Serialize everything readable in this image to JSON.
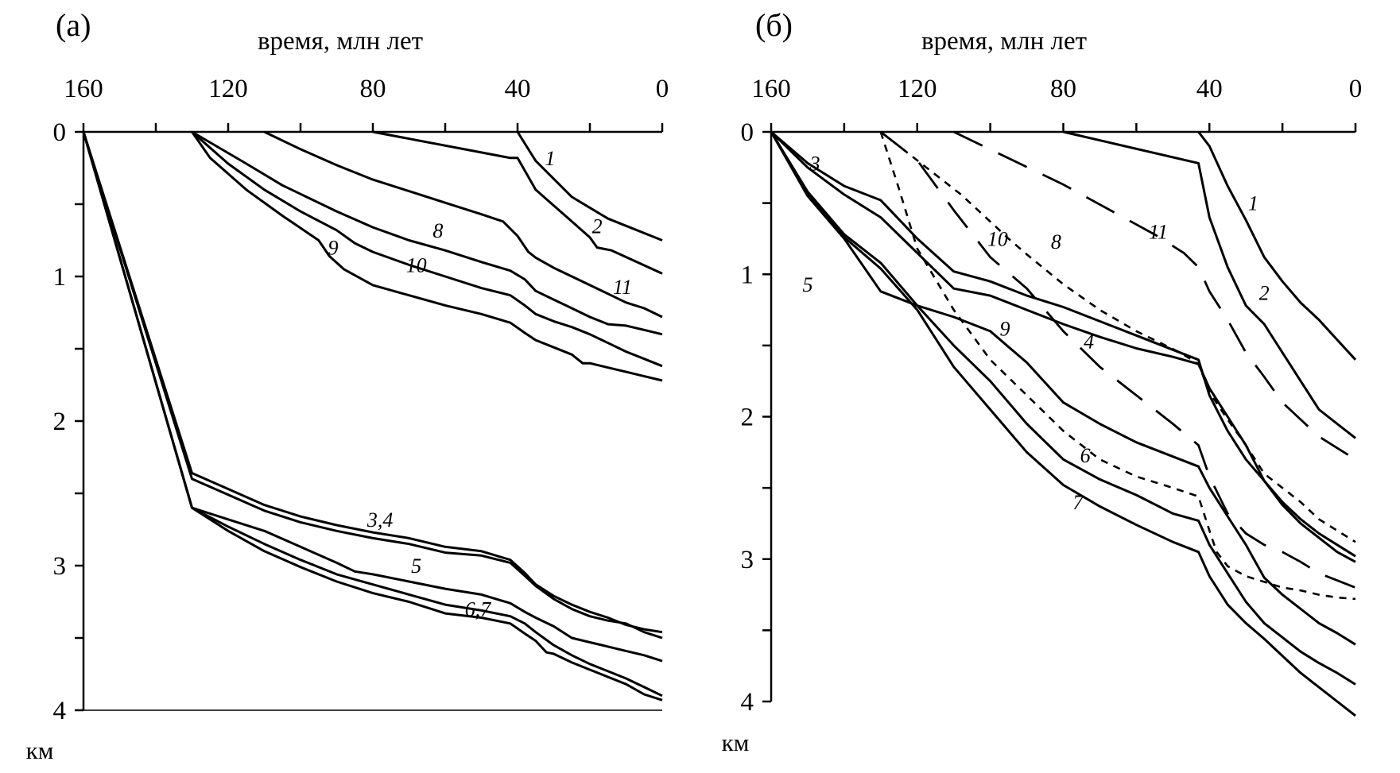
{
  "chart_data": [
    {
      "type": "line",
      "panel_label": "(а)",
      "xlabel": "время, млн лет",
      "ylabel": "км",
      "x_axis_position": "top",
      "x_reversed": true,
      "y_reversed": true,
      "xlim": [
        160,
        0
      ],
      "ylim": [
        0,
        4
      ],
      "x_tick_labels": [
        160,
        120,
        80,
        40,
        0
      ],
      "x_minor_ticks": [
        140,
        100,
        60,
        20
      ],
      "y_tick_labels": [
        0,
        1,
        2,
        3,
        4
      ],
      "y_minor_ticks": [
        0.5,
        1.5,
        2.5,
        3.5
      ],
      "grid": false,
      "series": [
        {
          "label": "1",
          "style": "solid",
          "label_at": [
            31,
            0.23
          ],
          "x": [
            40,
            35,
            25,
            15,
            0
          ],
          "y": [
            0,
            0.2,
            0.45,
            0.6,
            0.75
          ]
        },
        {
          "label": "2",
          "style": "solid",
          "label_at": [
            18,
            0.7
          ],
          "x": [
            80,
            42,
            40,
            35,
            25,
            20,
            18,
            14,
            0
          ],
          "y": [
            0,
            0.18,
            0.18,
            0.4,
            0.62,
            0.73,
            0.8,
            0.82,
            0.98
          ]
        },
        {
          "label": "",
          "style": "solid",
          "x": [
            110,
            100,
            90,
            80,
            70,
            60,
            50,
            44,
            40,
            37,
            35,
            30,
            25,
            20,
            15,
            10,
            5,
            0
          ],
          "y": [
            0,
            0.12,
            0.23,
            0.33,
            0.41,
            0.49,
            0.57,
            0.62,
            0.72,
            0.83,
            0.87,
            0.94,
            1.0,
            1.06,
            1.12,
            1.18,
            1.22,
            1.28
          ]
        },
        {
          "label": "8",
          "style": "solid",
          "label_at": [
            62,
            0.73
          ],
          "x": [
            130,
            115,
            105,
            90,
            80,
            70,
            60,
            50,
            42,
            38,
            35,
            30,
            25,
            20,
            15,
            10,
            5,
            0
          ],
          "y": [
            0,
            0.22,
            0.37,
            0.55,
            0.66,
            0.75,
            0.82,
            0.9,
            0.96,
            1.02,
            1.1,
            1.16,
            1.22,
            1.28,
            1.33,
            1.34,
            1.37,
            1.4
          ]
        },
        {
          "label": "11",
          "style": "solid",
          "label_at": [
            11,
            1.12
          ],
          "x": [
            130,
            120,
            110,
            100,
            90,
            85,
            80,
            70,
            60,
            50,
            42,
            38,
            35,
            30,
            25,
            20,
            15,
            10,
            5,
            0
          ],
          "y": [
            0,
            0.22,
            0.4,
            0.55,
            0.68,
            0.77,
            0.83,
            0.92,
            1.0,
            1.08,
            1.13,
            1.2,
            1.26,
            1.31,
            1.35,
            1.4,
            1.46,
            1.52,
            1.57,
            1.62
          ]
        },
        {
          "label": "9",
          "style": "solid",
          "label_at": [
            91,
            0.85
          ],
          "x": [
            130,
            125,
            115,
            105,
            95,
            92,
            88,
            80,
            70,
            60,
            50,
            42,
            38,
            35,
            30,
            25,
            22,
            20,
            15,
            10,
            5,
            0
          ],
          "y": [
            0,
            0.18,
            0.4,
            0.58,
            0.75,
            0.86,
            0.95,
            1.06,
            1.13,
            1.2,
            1.26,
            1.32,
            1.39,
            1.44,
            1.49,
            1.54,
            1.6,
            1.6,
            1.63,
            1.66,
            1.69,
            1.72
          ]
        },
        {
          "label": "10",
          "style": "solid",
          "label_at": [
            68,
            0.97
          ],
          "x": [],
          "y": []
        },
        {
          "label": "",
          "style": "solid",
          "x": [
            160,
            130,
            120,
            110,
            100,
            90,
            80,
            70,
            60,
            50,
            42,
            38,
            35,
            30,
            25,
            20,
            15,
            10,
            5,
            0
          ],
          "y": [
            0,
            2.36,
            2.47,
            2.58,
            2.66,
            2.72,
            2.77,
            2.81,
            2.87,
            2.9,
            2.96,
            3.05,
            3.13,
            3.21,
            3.27,
            3.32,
            3.36,
            3.41,
            3.44,
            3.46
          ]
        },
        {
          "label": "3,4",
          "style": "solid",
          "label_at": [
            78,
            2.73
          ],
          "x": [
            160,
            130,
            120,
            110,
            100,
            90,
            80,
            70,
            60,
            50,
            42,
            38,
            35,
            30,
            25,
            20,
            15,
            10,
            5,
            0
          ],
          "y": [
            0,
            2.4,
            2.51,
            2.62,
            2.7,
            2.76,
            2.81,
            2.85,
            2.91,
            2.93,
            2.98,
            3.07,
            3.14,
            3.23,
            3.3,
            3.35,
            3.38,
            3.4,
            3.46,
            3.5
          ]
        },
        {
          "label": "5",
          "style": "solid",
          "label_at": [
            68,
            3.05
          ],
          "x": [
            160,
            130,
            120,
            110,
            100,
            90,
            85,
            80,
            70,
            60,
            50,
            42,
            38,
            35,
            30,
            25,
            20,
            15,
            10,
            5,
            0
          ],
          "y": [
            0,
            2.6,
            2.68,
            2.76,
            2.87,
            2.98,
            3.04,
            3.06,
            3.11,
            3.16,
            3.2,
            3.26,
            3.32,
            3.36,
            3.42,
            3.5,
            3.53,
            3.56,
            3.59,
            3.62,
            3.66
          ]
        },
        {
          "label": "",
          "style": "solid",
          "x": [
            160,
            130,
            120,
            110,
            100,
            90,
            80,
            70,
            60,
            50,
            42,
            38,
            35,
            30,
            25,
            20,
            15,
            10,
            5,
            0
          ],
          "y": [
            0,
            2.6,
            2.73,
            2.85,
            2.96,
            3.06,
            3.13,
            3.2,
            3.27,
            3.31,
            3.35,
            3.4,
            3.46,
            3.55,
            3.62,
            3.68,
            3.73,
            3.78,
            3.84,
            3.9
          ]
        },
        {
          "label": "6,7",
          "style": "solid",
          "label_at": [
            51,
            3.35
          ],
          "x": [
            160,
            130,
            120,
            110,
            100,
            90,
            80,
            70,
            60,
            50,
            42,
            38,
            35,
            32,
            30,
            25,
            20,
            15,
            10,
            5,
            0
          ],
          "y": [
            0,
            2.6,
            2.76,
            2.9,
            3.01,
            3.11,
            3.19,
            3.25,
            3.33,
            3.36,
            3.4,
            3.47,
            3.52,
            3.6,
            3.61,
            3.67,
            3.72,
            3.77,
            3.82,
            3.89,
            3.93
          ]
        }
      ]
    },
    {
      "type": "line",
      "panel_label": "(б)",
      "xlabel": "время, млн лет",
      "ylabel": "км",
      "x_axis_position": "top",
      "x_reversed": true,
      "y_reversed": true,
      "xlim": [
        160,
        0
      ],
      "ylim": [
        0,
        4
      ],
      "x_tick_labels": [
        160,
        120,
        80,
        40,
        0
      ],
      "x_minor_ticks": [
        140,
        100,
        60,
        20
      ],
      "y_tick_labels": [
        0,
        1,
        2,
        3,
        4
      ],
      "y_minor_ticks": [
        0.5,
        1.5,
        2.5,
        3.5
      ],
      "grid": false,
      "series": [
        {
          "label": "1",
          "style": "solid",
          "label_at": [
            28,
            0.55
          ],
          "x": [
            43,
            40,
            35,
            30,
            25,
            20,
            15,
            10,
            5,
            0
          ],
          "y": [
            0,
            0.1,
            0.38,
            0.62,
            0.88,
            1.05,
            1.2,
            1.32,
            1.46,
            1.6
          ]
        },
        {
          "label": "2",
          "style": "solid",
          "label_at": [
            25,
            1.18
          ],
          "x": [
            80,
            43,
            40,
            35,
            30,
            25,
            20,
            15,
            10,
            5,
            0
          ],
          "y": [
            0,
            0.22,
            0.6,
            0.95,
            1.22,
            1.35,
            1.55,
            1.75,
            1.95,
            2.05,
            2.15
          ]
        },
        {
          "label": "11",
          "style": "long-dash",
          "label_at": [
            54,
            0.75
          ],
          "x": [
            110,
            80,
            55,
            47,
            43,
            40,
            35,
            30,
            25,
            20,
            15,
            10,
            5,
            0
          ],
          "y": [
            0,
            0.37,
            0.72,
            0.85,
            0.95,
            1.12,
            1.32,
            1.55,
            1.72,
            1.9,
            2.02,
            2.14,
            2.22,
            2.3
          ]
        },
        {
          "label": "8",
          "style": "short-dash",
          "label_at": [
            82,
            0.82
          ],
          "x": [
            130,
            122,
            115,
            108,
            100,
            95,
            90,
            80,
            70,
            60,
            48,
            43,
            40,
            35,
            30,
            25,
            20,
            15,
            10,
            5,
            0
          ],
          "y": [
            0,
            0.16,
            0.3,
            0.44,
            0.63,
            0.75,
            0.86,
            1.07,
            1.25,
            1.4,
            1.55,
            1.63,
            1.83,
            2.02,
            2.2,
            2.4,
            2.5,
            2.6,
            2.72,
            2.8,
            2.88
          ]
        },
        {
          "label": "10",
          "style": "long-dash",
          "label_at": [
            98,
            0.8
          ],
          "x": [
            130,
            120,
            110,
            100,
            90,
            80,
            70,
            60,
            50,
            43,
            40,
            35,
            30,
            25,
            20,
            15,
            10,
            5,
            0
          ],
          "y": [
            0,
            0.2,
            0.55,
            0.88,
            1.1,
            1.4,
            1.65,
            1.85,
            2.05,
            2.2,
            2.42,
            2.68,
            2.82,
            2.9,
            2.95,
            3.02,
            3.1,
            3.15,
            3.2
          ]
        },
        {
          "label": "9",
          "style": "short-dash",
          "label_at": [
            96,
            1.43
          ],
          "x": [
            130,
            125,
            120,
            110,
            100,
            90,
            80,
            70,
            60,
            50,
            43,
            40,
            38,
            35,
            30,
            25,
            20,
            15,
            10,
            5,
            0
          ],
          "y": [
            0,
            0.4,
            0.82,
            1.25,
            1.6,
            1.85,
            2.1,
            2.3,
            2.42,
            2.5,
            2.56,
            2.8,
            2.95,
            3.05,
            3.12,
            3.16,
            3.2,
            3.22,
            3.25,
            3.27,
            3.28
          ]
        },
        {
          "label": "3",
          "style": "solid",
          "label_at": [
            148,
            0.27
          ],
          "x": [
            160,
            150,
            140,
            130,
            120,
            110,
            100,
            90,
            80,
            70,
            60,
            50,
            43,
            40,
            35,
            30,
            25,
            20,
            15,
            10,
            5,
            0
          ],
          "y": [
            0,
            0.22,
            0.38,
            0.48,
            0.75,
            0.98,
            1.05,
            1.15,
            1.23,
            1.33,
            1.43,
            1.53,
            1.6,
            1.85,
            2.1,
            2.3,
            2.45,
            2.6,
            2.72,
            2.82,
            2.9,
            2.98
          ]
        },
        {
          "label": "4",
          "style": "solid",
          "label_at": [
            73,
            1.52
          ],
          "x": [
            160,
            150,
            140,
            130,
            120,
            110,
            100,
            90,
            80,
            70,
            60,
            50,
            43,
            40,
            35,
            30,
            25,
            20,
            15,
            10,
            5,
            0
          ],
          "y": [
            0,
            0.25,
            0.44,
            0.6,
            0.85,
            1.1,
            1.15,
            1.25,
            1.35,
            1.44,
            1.52,
            1.58,
            1.63,
            1.8,
            2.0,
            2.2,
            2.45,
            2.62,
            2.75,
            2.85,
            2.95,
            3.02
          ]
        },
        {
          "label": "5",
          "style": "solid",
          "label_at": [
            150,
            1.12
          ],
          "x": [
            160,
            150,
            140,
            130,
            120,
            110,
            100,
            90,
            80,
            70,
            60,
            50,
            43,
            40,
            35,
            30,
            25,
            20,
            15,
            10,
            5,
            0
          ],
          "y": [
            0,
            0.45,
            0.75,
            1.12,
            1.22,
            1.3,
            1.4,
            1.62,
            1.9,
            2.05,
            2.18,
            2.28,
            2.35,
            2.5,
            2.7,
            2.9,
            3.13,
            3.25,
            3.35,
            3.45,
            3.52,
            3.6
          ]
        },
        {
          "label": "6",
          "style": "solid",
          "label_at": [
            74,
            2.32
          ],
          "x": [
            160,
            150,
            140,
            130,
            120,
            110,
            100,
            90,
            80,
            70,
            60,
            50,
            43,
            40,
            35,
            30,
            25,
            20,
            15,
            10,
            5,
            0
          ],
          "y": [
            0,
            0.42,
            0.72,
            0.92,
            1.22,
            1.5,
            1.75,
            2.05,
            2.3,
            2.44,
            2.55,
            2.68,
            2.73,
            2.9,
            3.1,
            3.3,
            3.45,
            3.55,
            3.65,
            3.73,
            3.8,
            3.88
          ]
        },
        {
          "label": "7",
          "style": "solid",
          "label_at": [
            76,
            2.65
          ],
          "x": [
            160,
            150,
            140,
            130,
            120,
            110,
            100,
            90,
            80,
            70,
            60,
            50,
            43,
            40,
            35,
            30,
            25,
            20,
            15,
            10,
            5,
            0
          ],
          "y": [
            0,
            0.44,
            0.74,
            0.96,
            1.25,
            1.65,
            1.95,
            2.25,
            2.48,
            2.63,
            2.76,
            2.88,
            2.95,
            3.12,
            3.32,
            3.45,
            3.56,
            3.68,
            3.8,
            3.9,
            4.0,
            4.1
          ]
        }
      ]
    }
  ]
}
